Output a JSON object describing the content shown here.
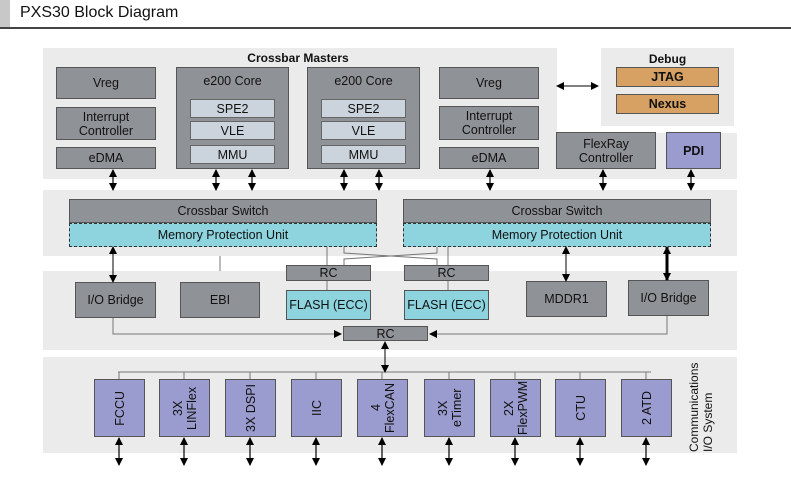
{
  "header": {
    "title": "PXS30 Block Diagram"
  },
  "crossbar_masters": {
    "label": "Crossbar Masters",
    "left": {
      "vreg": "Vreg",
      "interrupt": "Interrupt Controller",
      "edma": "eDMA"
    },
    "core1": {
      "label": "e200 Core",
      "spe2": "SPE2",
      "vle": "VLE",
      "mmu": "MMU"
    },
    "core2": {
      "label": "e200 Core",
      "spe2": "SPE2",
      "vle": "VLE",
      "mmu": "MMU"
    },
    "right": {
      "vreg": "Vreg",
      "interrupt": "Interrupt Controller",
      "edma": "eDMA"
    },
    "flexray": "FlexRay Controller",
    "pdi": "PDI"
  },
  "debug": {
    "label": "Debug",
    "jtag": "JTAG",
    "nexus": "Nexus"
  },
  "crossbar": {
    "left": {
      "switch": "Crossbar Switch",
      "mpu": "Memory Protection Unit"
    },
    "right": {
      "switch": "Crossbar Switch",
      "mpu": "Memory Protection Unit"
    }
  },
  "slaves": {
    "io_bridge_left": "I/O Bridge",
    "ebi": "EBI",
    "rc_left": "RC",
    "flash_left": "FLASH (ECC)",
    "rc_right": "RC",
    "flash_right": "FLASH (ECC)",
    "mddr1": "MDDR1",
    "io_bridge_right": "I/O Bridge",
    "rc_bottom": "RC"
  },
  "io_system": {
    "label": "Communications I/O System",
    "peripherals": [
      "FCCU",
      "3X LINFlex",
      "3X DSPI",
      "IIC",
      "4 FlexCAN",
      "3X eTimer",
      "2X FlexPWM",
      "CTU",
      "2 ATD"
    ]
  },
  "colors": {
    "block_gray": "#8f9398",
    "sub_block": "#cbd4dc",
    "memory_cyan": "#8dd4df",
    "debug_orange": "#d6a163",
    "peripheral_purple": "#9a9bce",
    "panel": "#ebebeb"
  }
}
